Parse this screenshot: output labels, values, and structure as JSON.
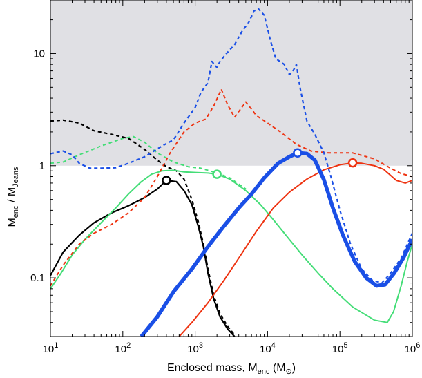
{
  "chart_data": {
    "type": "line",
    "xlabel": "Enclosed mass, M",
    "xlabel_sub": "enc",
    "xlabel_unit_open": "(M",
    "xlabel_unit_close": ")",
    "xlabel_unit_symbol": "⊙",
    "ylabel": "M",
    "ylabel_sub1": "enc",
    "ylabel_mid": " / M",
    "ylabel_sub2": "Jeans",
    "x_scale": "log",
    "y_scale": "log",
    "xlim": [
      10,
      1000000
    ],
    "ylim": [
      0.03,
      30
    ],
    "grid": false,
    "shaded_region": {
      "y_from": 1,
      "y_to": 30,
      "color": "#e0e0e4"
    },
    "x_ticks": [
      {
        "base": "10",
        "exp": "1"
      },
      {
        "base": "10",
        "exp": "2"
      },
      {
        "base": "10",
        "exp": "3"
      },
      {
        "base": "10",
        "exp": "4"
      },
      {
        "base": "10",
        "exp": "5"
      },
      {
        "base": "10",
        "exp": "6"
      }
    ],
    "y_ticks": [
      {
        "value": 0.1,
        "label": "0.1"
      },
      {
        "value": 1,
        "label": "1"
      },
      {
        "value": 10,
        "label": "10"
      }
    ],
    "series": [
      {
        "color": "#000000",
        "style": "solid",
        "width": 2.2,
        "points": [
          [
            10,
            0.105
          ],
          [
            15,
            0.17
          ],
          [
            25,
            0.24
          ],
          [
            40,
            0.31
          ],
          [
            70,
            0.38
          ],
          [
            120,
            0.44
          ],
          [
            200,
            0.52
          ],
          [
            300,
            0.62
          ],
          [
            400,
            0.74
          ],
          [
            550,
            0.72
          ],
          [
            700,
            0.6
          ],
          [
            900,
            0.45
          ],
          [
            1100,
            0.29
          ],
          [
            1300,
            0.19
          ],
          [
            1500,
            0.11
          ],
          [
            1800,
            0.065
          ],
          [
            2200,
            0.045
          ],
          [
            2800,
            0.035
          ],
          [
            3500,
            0.03
          ]
        ]
      },
      {
        "color": "#000000",
        "style": "dashed",
        "width": 2.2,
        "points": [
          [
            10,
            2.5
          ],
          [
            15,
            2.55
          ],
          [
            25,
            2.4
          ],
          [
            40,
            2.05
          ],
          [
            70,
            1.9
          ],
          [
            120,
            1.75
          ],
          [
            200,
            1.4
          ],
          [
            300,
            1.12
          ],
          [
            400,
            0.98
          ],
          [
            550,
            0.9
          ],
          [
            700,
            0.76
          ],
          [
            900,
            0.5
          ],
          [
            1100,
            0.32
          ],
          [
            1300,
            0.2
          ],
          [
            1500,
            0.12
          ],
          [
            1800,
            0.07
          ],
          [
            2200,
            0.048
          ],
          [
            2800,
            0.037
          ],
          [
            3500,
            0.031
          ]
        ]
      },
      {
        "color": "#44dd77",
        "style": "solid",
        "width": 2,
        "points": [
          [
            10,
            0.08
          ],
          [
            14,
            0.11
          ],
          [
            20,
            0.16
          ],
          [
            30,
            0.22
          ],
          [
            50,
            0.31
          ],
          [
            80,
            0.42
          ],
          [
            120,
            0.56
          ],
          [
            180,
            0.72
          ],
          [
            250,
            0.84
          ],
          [
            350,
            0.9
          ],
          [
            500,
            0.91
          ],
          [
            700,
            0.88
          ],
          [
            1000,
            0.87
          ],
          [
            1500,
            0.86
          ],
          [
            2000,
            0.84
          ],
          [
            3000,
            0.76
          ],
          [
            5000,
            0.6
          ],
          [
            8000,
            0.45
          ],
          [
            12000,
            0.33
          ],
          [
            20000,
            0.22
          ],
          [
            30000,
            0.16
          ],
          [
            50000,
            0.11
          ],
          [
            80000,
            0.08
          ],
          [
            150000,
            0.055
          ],
          [
            300000,
            0.042
          ],
          [
            450000,
            0.04
          ],
          [
            550000,
            0.05
          ],
          [
            700000,
            0.085
          ],
          [
            850000,
            0.14
          ],
          [
            1000000,
            0.2
          ]
        ]
      },
      {
        "color": "#44dd77",
        "style": "dashed",
        "width": 2,
        "points": [
          [
            10,
            1.05
          ],
          [
            15,
            1.08
          ],
          [
            25,
            1.25
          ],
          [
            50,
            1.5
          ],
          [
            100,
            1.75
          ],
          [
            140,
            1.82
          ],
          [
            200,
            1.62
          ],
          [
            300,
            1.3
          ],
          [
            500,
            1.08
          ],
          [
            800,
            0.98
          ],
          [
            1200,
            0.95
          ],
          [
            2000,
            0.86
          ],
          [
            3000,
            0.78
          ],
          [
            5000,
            0.62
          ]
        ]
      },
      {
        "color": "#ee3311",
        "style": "solid",
        "width": 2,
        "points": [
          [
            600,
            0.03
          ],
          [
            900,
            0.04
          ],
          [
            1500,
            0.06
          ],
          [
            2500,
            0.095
          ],
          [
            4000,
            0.15
          ],
          [
            7000,
            0.26
          ],
          [
            12000,
            0.42
          ],
          [
            20000,
            0.58
          ],
          [
            35000,
            0.76
          ],
          [
            60000,
            0.92
          ],
          [
            100000,
            1.02
          ],
          [
            150000,
            1.06
          ],
          [
            200000,
            1.05
          ],
          [
            300000,
            1.0
          ],
          [
            400000,
            0.93
          ],
          [
            500000,
            0.82
          ],
          [
            600000,
            0.74
          ],
          [
            800000,
            0.7
          ],
          [
            1000000,
            0.74
          ]
        ]
      },
      {
        "color": "#ee3311",
        "style": "dashed",
        "width": 2,
        "points": [
          [
            10,
            0.085
          ],
          [
            15,
            0.13
          ],
          [
            25,
            0.2
          ],
          [
            40,
            0.25
          ],
          [
            70,
            0.3
          ],
          [
            120,
            0.38
          ],
          [
            200,
            0.52
          ],
          [
            300,
            0.8
          ],
          [
            450,
            1.3
          ],
          [
            700,
            2.0
          ],
          [
            1000,
            2.4
          ],
          [
            1400,
            2.6
          ],
          [
            1800,
            3.4
          ],
          [
            2300,
            4.8
          ],
          [
            2800,
            3.5
          ],
          [
            3500,
            2.7
          ],
          [
            5000,
            3.7
          ],
          [
            7000,
            2.8
          ],
          [
            10000,
            2.4
          ],
          [
            15000,
            2.0
          ],
          [
            25000,
            1.55
          ],
          [
            40000,
            1.35
          ],
          [
            70000,
            1.3
          ],
          [
            150000,
            1.3
          ],
          [
            300000,
            1.15
          ],
          [
            500000,
            0.95
          ],
          [
            700000,
            0.85
          ],
          [
            1000000,
            0.8
          ]
        ]
      },
      {
        "color": "#1a4fe6",
        "style": "solid",
        "width": 5.5,
        "points": [
          [
            180,
            0.03
          ],
          [
            300,
            0.045
          ],
          [
            500,
            0.075
          ],
          [
            900,
            0.12
          ],
          [
            1500,
            0.19
          ],
          [
            2500,
            0.29
          ],
          [
            4000,
            0.42
          ],
          [
            6000,
            0.56
          ],
          [
            9000,
            0.78
          ],
          [
            14000,
            1.05
          ],
          [
            20000,
            1.2
          ],
          [
            26000,
            1.3
          ],
          [
            35000,
            1.28
          ],
          [
            45000,
            1.12
          ],
          [
            60000,
            0.75
          ],
          [
            80000,
            0.42
          ],
          [
            110000,
            0.24
          ],
          [
            160000,
            0.14
          ],
          [
            230000,
            0.1
          ],
          [
            320000,
            0.085
          ],
          [
            420000,
            0.087
          ],
          [
            560000,
            0.11
          ],
          [
            750000,
            0.15
          ],
          [
            1000000,
            0.22
          ]
        ]
      },
      {
        "color": "#1a4fe6",
        "style": "dashed",
        "width": 2.2,
        "points": [
          [
            10,
            1.28
          ],
          [
            15,
            1.35
          ],
          [
            20,
            1.25
          ],
          [
            25,
            1.05
          ],
          [
            35,
            0.95
          ],
          [
            50,
            0.95
          ],
          [
            80,
            0.96
          ],
          [
            120,
            1.05
          ],
          [
            200,
            1.2
          ],
          [
            350,
            1.5
          ],
          [
            500,
            1.7
          ],
          [
            700,
            2.4
          ],
          [
            1000,
            3.3
          ],
          [
            1200,
            4.5
          ],
          [
            1500,
            5.5
          ],
          [
            1700,
            8.5
          ],
          [
            2000,
            7.5
          ],
          [
            2200,
            8.5
          ],
          [
            2700,
            10
          ],
          [
            3500,
            12
          ],
          [
            4500,
            16
          ],
          [
            5500,
            19
          ],
          [
            6500,
            24
          ],
          [
            7500,
            25
          ],
          [
            9000,
            22
          ],
          [
            11000,
            13
          ],
          [
            13000,
            9
          ],
          [
            17000,
            8
          ],
          [
            20000,
            6.5
          ],
          [
            22000,
            6.8
          ],
          [
            25000,
            8.0
          ],
          [
            28000,
            5
          ],
          [
            35000,
            2.5
          ],
          [
            45000,
            1.9
          ],
          [
            60000,
            1.3
          ],
          [
            75000,
            0.8
          ],
          [
            100000,
            0.4
          ],
          [
            140000,
            0.2
          ],
          [
            200000,
            0.12
          ],
          [
            280000,
            0.095
          ],
          [
            380000,
            0.09
          ],
          [
            500000,
            0.11
          ],
          [
            700000,
            0.15
          ],
          [
            1000000,
            0.25
          ]
        ]
      }
    ],
    "markers": [
      {
        "x": 400,
        "y": 0.74,
        "color": "#000000"
      },
      {
        "x": 2000,
        "y": 0.84,
        "color": "#44dd77"
      },
      {
        "x": 26000,
        "y": 1.3,
        "color": "#1a4fe6"
      },
      {
        "x": 150000,
        "y": 1.06,
        "color": "#ee3311"
      }
    ]
  }
}
